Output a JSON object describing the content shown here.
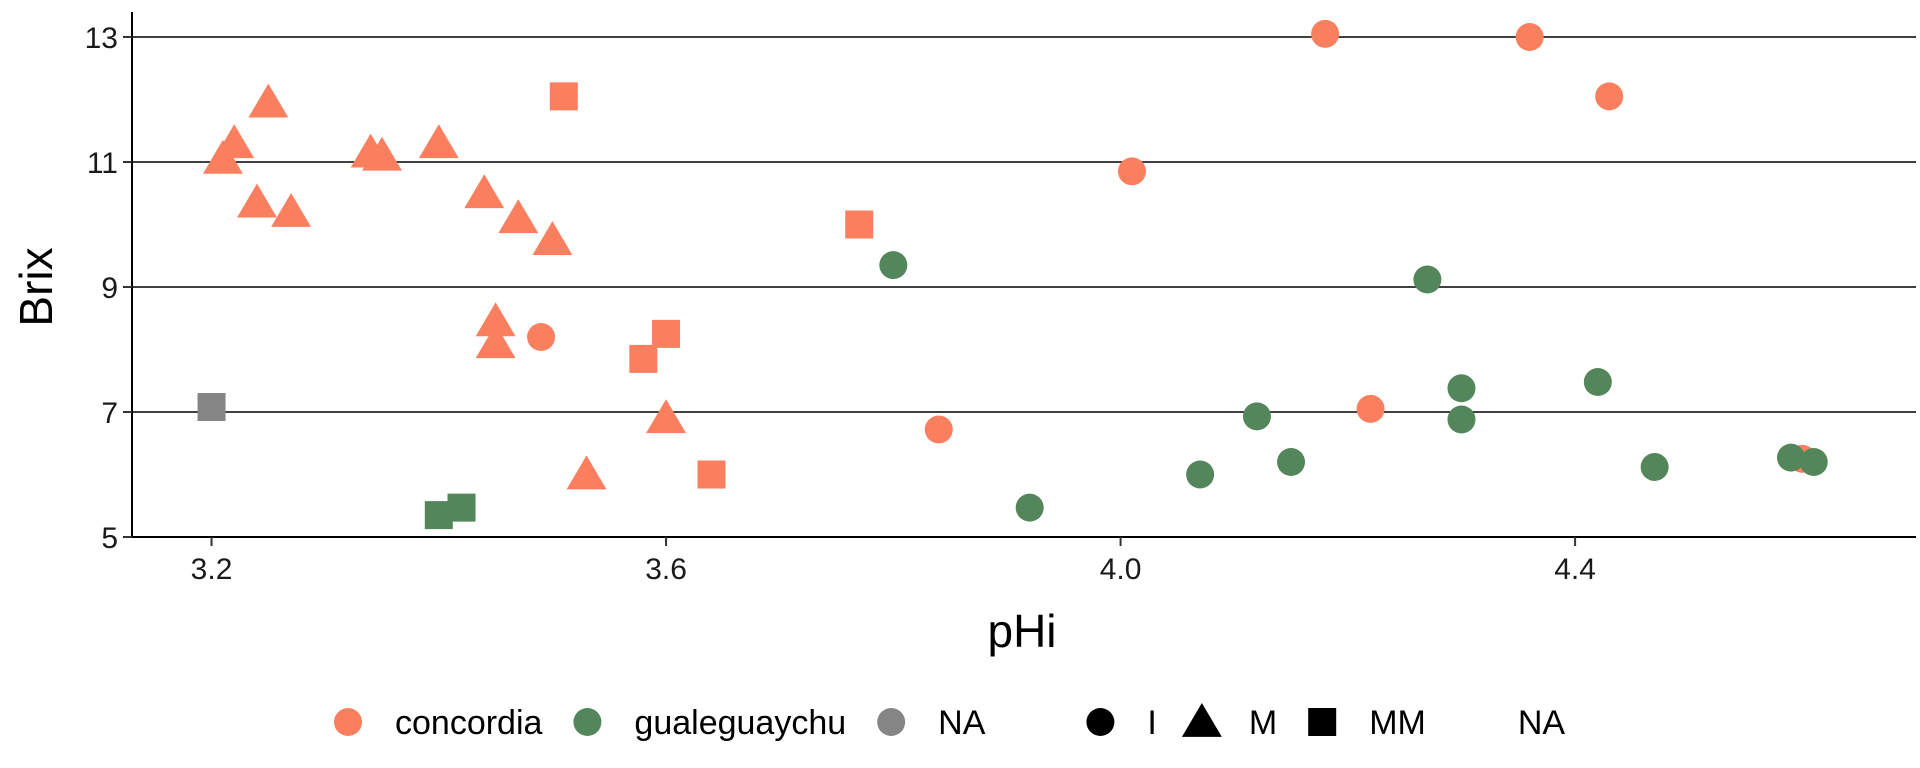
{
  "chart_data": {
    "type": "scatter",
    "title": "",
    "xlabel": "pHi",
    "ylabel": "Brix",
    "xlim": [
      3.13,
      4.7
    ],
    "ylim": [
      5.0,
      13.4
    ],
    "xticks": [
      3.2,
      3.6,
      4.0,
      4.4
    ],
    "xtick_labels": [
      "3.2",
      "3.6",
      "4.0",
      "4.4"
    ],
    "yticks": [
      5,
      7,
      9,
      11,
      13
    ],
    "ytick_labels": [
      "5",
      "7",
      "9",
      "11",
      "13"
    ],
    "grid": "horizontal major",
    "legend_position": "bottom",
    "color_legend": [
      {
        "key": "concordia",
        "label": "concordia",
        "color": "#FA7F5E"
      },
      {
        "key": "gualeguaychu",
        "label": "gualeguaychu",
        "color": "#53865A"
      },
      {
        "key": "NA",
        "label": "NA",
        "color": "#858585"
      }
    ],
    "shape_legend": [
      {
        "key": "I",
        "label": "I",
        "shape": "circle"
      },
      {
        "key": "M",
        "label": "M",
        "shape": "triangle"
      },
      {
        "key": "MM",
        "label": "MM",
        "shape": "square"
      },
      {
        "key": "NA",
        "label": "NA",
        "shape": "none"
      }
    ],
    "series": [
      {
        "color_key": "concordia",
        "shape_key": "I",
        "points": [
          [
            4.18,
            13.05
          ],
          [
            4.36,
            13.0
          ],
          [
            4.43,
            12.05
          ],
          [
            4.01,
            10.85
          ],
          [
            3.49,
            8.2
          ],
          [
            3.84,
            6.72
          ],
          [
            4.22,
            7.05
          ],
          [
            4.6,
            6.25
          ]
        ]
      },
      {
        "color_key": "concordia",
        "shape_key": "M",
        "points": [
          [
            3.25,
            11.95
          ],
          [
            3.22,
            11.3
          ],
          [
            3.21,
            11.05
          ],
          [
            3.24,
            10.35
          ],
          [
            3.27,
            10.2
          ],
          [
            3.34,
            11.15
          ],
          [
            3.35,
            11.1
          ],
          [
            3.4,
            11.3
          ],
          [
            3.44,
            10.5
          ],
          [
            3.47,
            10.1
          ],
          [
            3.5,
            9.75
          ],
          [
            3.45,
            8.45
          ],
          [
            3.45,
            8.1
          ],
          [
            3.6,
            6.9
          ],
          [
            3.53,
            6.0
          ]
        ]
      },
      {
        "color_key": "concordia",
        "shape_key": "MM",
        "points": [
          [
            3.51,
            12.05
          ],
          [
            3.77,
            10.0
          ],
          [
            3.6,
            8.25
          ],
          [
            3.58,
            7.85
          ],
          [
            3.64,
            6.0
          ]
        ]
      },
      {
        "color_key": "gualeguaychu",
        "shape_key": "I",
        "points": [
          [
            3.8,
            9.35
          ],
          [
            4.27,
            9.12
          ],
          [
            4.42,
            7.48
          ],
          [
            4.3,
            7.38
          ],
          [
            4.12,
            6.93
          ],
          [
            4.3,
            6.88
          ],
          [
            4.15,
            6.2
          ],
          [
            4.07,
            6.0
          ],
          [
            4.47,
            6.12
          ],
          [
            4.59,
            6.27
          ],
          [
            4.61,
            6.2
          ],
          [
            3.92,
            5.47
          ]
        ]
      },
      {
        "color_key": "gualeguaychu",
        "shape_key": "MM",
        "points": [
          [
            3.4,
            5.35
          ],
          [
            3.42,
            5.47
          ]
        ]
      },
      {
        "color_key": "NA",
        "shape_key": "MM",
        "points": [
          [
            3.2,
            7.08
          ]
        ]
      }
    ]
  }
}
